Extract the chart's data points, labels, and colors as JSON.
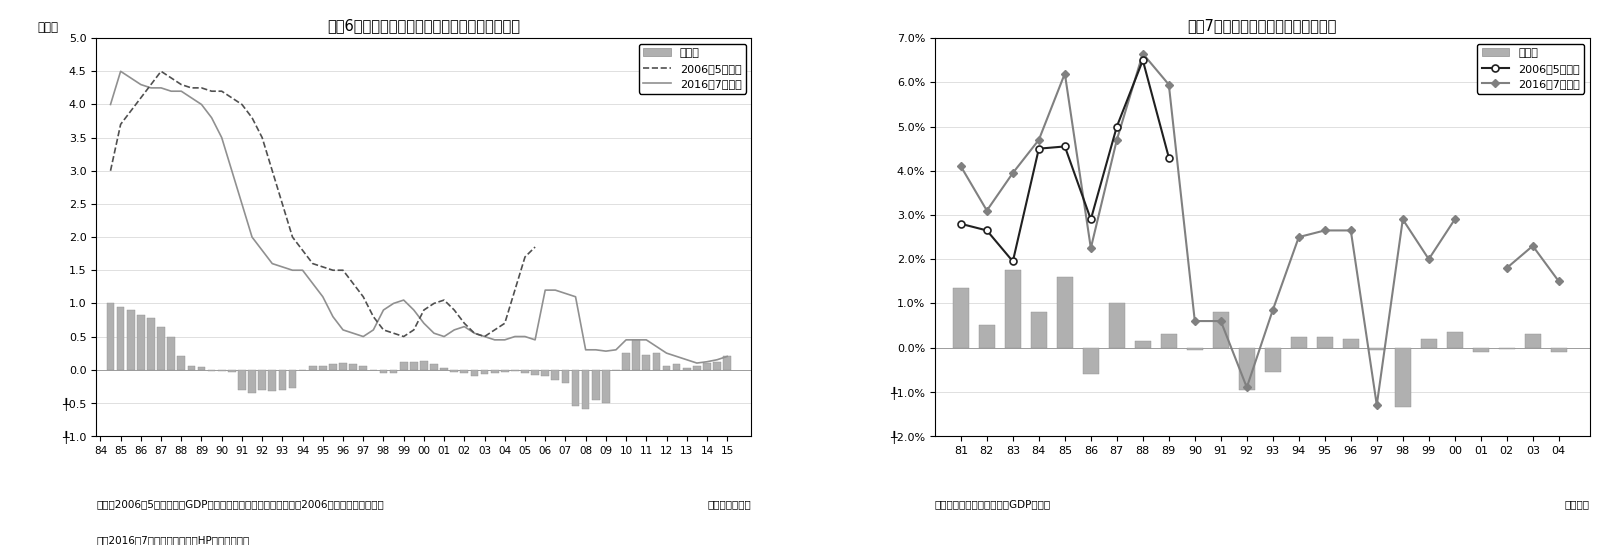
{
  "chart1": {
    "title": "図袄6　改定される潜在成長率（日本銀行推計）",
    "ylabel": "（％）",
    "xlabel_note": "（年度・半期）",
    "footnote1": "（注）2006年5月時点は『GDPギャップと潜在成長率の新推計（2006）のバックデータ、",
    "footnote2": "　　2016年7月時点は日本銀行HPから入手した",
    "footnote_right": "（年度・半期）",
    "legend_bar": "改定幅",
    "legend_2006": "2006年5月時点",
    "legend_2016": "2016年7月時点",
    "ylim": [
      -1.0,
      5.0
    ],
    "line2006_x": [
      1984.5,
      1985.0,
      1985.5,
      1986.0,
      1986.5,
      1987.0,
      1987.5,
      1988.0,
      1988.5,
      1989.0,
      1989.5,
      1990.0,
      1990.5,
      1991.0,
      1991.5,
      1992.0,
      1992.5,
      1993.0,
      1993.5,
      1994.0,
      1994.5,
      1995.0,
      1995.5,
      1996.0,
      1996.5,
      1997.0,
      1997.5,
      1998.0,
      1998.5,
      1999.0,
      1999.5,
      2000.0,
      2000.5,
      2001.0,
      2001.5,
      2002.0,
      2002.5,
      2003.0,
      2003.5,
      2004.0,
      2004.5,
      2005.0,
      2005.5
    ],
    "line2006_y": [
      3.0,
      3.7,
      3.9,
      4.1,
      4.3,
      4.5,
      4.4,
      4.3,
      4.25,
      4.25,
      4.2,
      4.2,
      4.1,
      4.0,
      3.8,
      3.5,
      3.0,
      2.5,
      2.0,
      1.8,
      1.6,
      1.55,
      1.5,
      1.5,
      1.3,
      1.1,
      0.8,
      0.6,
      0.55,
      0.5,
      0.6,
      0.9,
      1.0,
      1.05,
      0.9,
      0.7,
      0.55,
      0.5,
      0.6,
      0.7,
      1.2,
      1.7,
      1.85
    ],
    "line2016_x": [
      1984.5,
      1985.0,
      1985.5,
      1986.0,
      1986.5,
      1987.0,
      1987.5,
      1988.0,
      1988.5,
      1989.0,
      1989.5,
      1990.0,
      1990.5,
      1991.0,
      1991.5,
      1992.0,
      1992.5,
      1993.0,
      1993.5,
      1994.0,
      1994.5,
      1995.0,
      1995.5,
      1996.0,
      1996.5,
      1997.0,
      1997.5,
      1998.0,
      1998.5,
      1999.0,
      1999.5,
      2000.0,
      2000.5,
      2001.0,
      2001.5,
      2002.0,
      2002.5,
      2003.0,
      2003.5,
      2004.0,
      2004.5,
      2005.0,
      2005.5,
      2006.0,
      2006.5,
      2007.0,
      2007.5,
      2008.0,
      2008.5,
      2009.0,
      2009.5,
      2010.0,
      2010.5,
      2011.0,
      2011.5,
      2012.0,
      2012.5,
      2013.0,
      2013.5,
      2014.0,
      2014.5,
      2015.0
    ],
    "line2016_y": [
      4.0,
      4.5,
      4.4,
      4.3,
      4.25,
      4.25,
      4.2,
      4.2,
      4.1,
      4.0,
      3.8,
      3.5,
      3.0,
      2.5,
      2.0,
      1.8,
      1.6,
      1.55,
      1.5,
      1.5,
      1.3,
      1.1,
      0.8,
      0.6,
      0.55,
      0.5,
      0.6,
      0.9,
      1.0,
      1.05,
      0.9,
      0.7,
      0.55,
      0.5,
      0.6,
      0.65,
      0.55,
      0.5,
      0.45,
      0.45,
      0.5,
      0.5,
      0.45,
      1.2,
      1.2,
      1.15,
      1.1,
      0.3,
      0.3,
      0.28,
      0.3,
      0.45,
      0.45,
      0.45,
      0.35,
      0.25,
      0.2,
      0.15,
      0.1,
      0.12,
      0.15,
      0.2
    ],
    "bars_x": [
      1984.5,
      1985.0,
      1985.5,
      1986.0,
      1986.5,
      1987.0,
      1987.5,
      1988.0,
      1988.5,
      1989.0,
      1989.5,
      1990.0,
      1990.5,
      1991.0,
      1991.5,
      1992.0,
      1992.5,
      1993.0,
      1993.5,
      1994.0,
      1994.5,
      1995.0,
      1995.5,
      1996.0,
      1996.5,
      1997.0,
      1997.5,
      1998.0,
      1998.5,
      1999.0,
      1999.5,
      2000.0,
      2000.5,
      2001.0,
      2001.5,
      2002.0,
      2002.5,
      2003.0,
      2003.5,
      2004.0,
      2004.5,
      2005.0,
      2005.5,
      2006.0,
      2006.5,
      2007.0,
      2007.5,
      2008.0,
      2008.5,
      2009.0,
      2009.5,
      2010.0,
      2010.5,
      2011.0,
      2011.5,
      2012.0,
      2012.5,
      2013.0,
      2013.5,
      2014.0,
      2014.5,
      2015.0
    ],
    "bars_y": [
      1.0,
      0.95,
      0.9,
      0.82,
      0.78,
      0.65,
      0.5,
      0.2,
      0.06,
      0.04,
      -0.02,
      -0.02,
      -0.03,
      -0.3,
      -0.35,
      -0.3,
      -0.32,
      -0.3,
      -0.28,
      0.0,
      0.05,
      0.05,
      0.08,
      0.1,
      0.08,
      0.05,
      0.0,
      -0.05,
      -0.05,
      0.12,
      0.12,
      0.13,
      0.08,
      0.02,
      -0.03,
      -0.05,
      -0.1,
      -0.07,
      -0.05,
      -0.03,
      -0.02,
      -0.05,
      -0.08,
      -0.1,
      -0.15,
      -0.2,
      -0.55,
      -0.6,
      -0.45,
      -0.5,
      0.0,
      0.25,
      0.45,
      0.22,
      0.25,
      0.05,
      0.08,
      0.03,
      0.05,
      0.1,
      0.12,
      0.2
    ],
    "bar_color": "#b0b0b0",
    "bar_edge_color": "#909090",
    "line2006_color": "#505050",
    "line2016_color": "#909090",
    "xtick_labels": [
      "84",
      "85",
      "86",
      "87",
      "88",
      "89",
      "90",
      "91",
      "92",
      "93",
      "94",
      "95",
      "96",
      "97",
      "98",
      "99",
      "00",
      "01",
      "02",
      "03",
      "04",
      "05",
      "06",
      "07",
      "08",
      "09",
      "10",
      "11",
      "12",
      "13",
      "14",
      "15"
    ]
  },
  "chart2": {
    "title": "図袄7　改定される実質ＧＤＰ成長率",
    "xlabel_note": "（年度）",
    "footnote": "（資料）内閣府「四半期別GDP速報」",
    "legend_bar": "改定幅",
    "legend_2006": "2006年5月時点",
    "legend_2016": "2016年7月時点",
    "ylim": [
      -2.0,
      7.0
    ],
    "years": [
      1981,
      1982,
      1983,
      1984,
      1985,
      1986,
      1987,
      1988,
      1989,
      1990,
      1991,
      1992,
      1993,
      1994,
      1995,
      1996,
      1997,
      1998,
      1999,
      2000,
      2001,
      2002,
      2003,
      2004
    ],
    "xtick_labels": [
      "81",
      "82",
      "83",
      "84",
      "85",
      "86",
      "87",
      "88",
      "89",
      "90",
      "91",
      "92",
      "93",
      "94",
      "95",
      "96",
      "97",
      "98",
      "99",
      "00",
      "01",
      "02",
      "03",
      "04"
    ],
    "line2006_y": [
      2.8,
      2.65,
      1.95,
      4.5,
      4.55,
      2.9,
      5.0,
      6.5,
      4.3,
      null,
      null,
      null,
      null,
      null,
      null,
      null,
      null,
      null,
      null,
      null,
      null,
      null,
      null,
      null
    ],
    "line2006_open": [
      1981,
      1982,
      1983,
      1984,
      1985,
      1986,
      1987,
      1988,
      1989
    ],
    "line2016_y": [
      4.1,
      3.1,
      3.95,
      4.7,
      6.2,
      2.25,
      4.7,
      6.65,
      5.95,
      0.6,
      0.6,
      -0.9,
      0.85,
      2.5,
      2.65,
      2.65,
      -1.3,
      2.9,
      2.0,
      2.9,
      null,
      1.8,
      2.3,
      1.5
    ],
    "bars_y": [
      1.35,
      0.5,
      1.75,
      0.8,
      1.6,
      -0.6,
      1.0,
      0.15,
      0.3,
      -0.05,
      0.8,
      -0.95,
      -0.55,
      0.25,
      0.25,
      0.2,
      -0.05,
      -1.35,
      0.2,
      0.35,
      -0.1,
      -0.03,
      0.3,
      -0.1
    ],
    "bar_color": "#b0b0b0",
    "bar_edge_color": "#909090",
    "line2006_color": "#202020",
    "line2016_color": "#808080"
  }
}
